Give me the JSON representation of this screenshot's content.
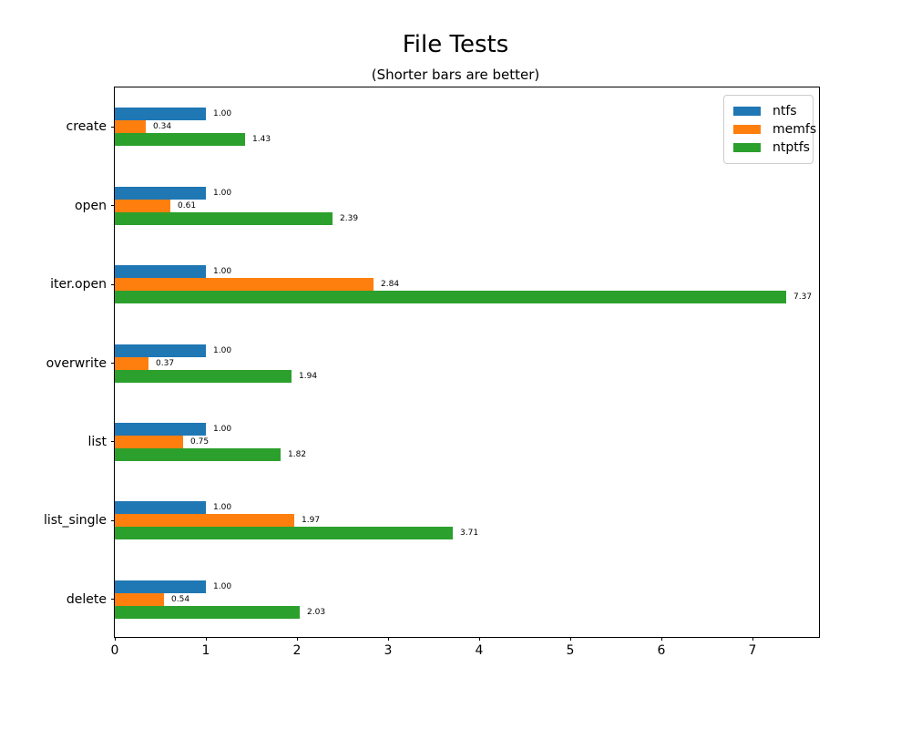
{
  "title": "File Tests",
  "subtitle": "(Shorter bars are better)",
  "chart_data": {
    "type": "bar",
    "orientation": "horizontal",
    "title": "File Tests",
    "subtitle": "(Shorter bars are better)",
    "categories": [
      "create",
      "open",
      "iter.open",
      "overwrite",
      "list",
      "list_single",
      "delete"
    ],
    "series": [
      {
        "name": "ntfs",
        "color": "#1f77b4",
        "values": [
          1.0,
          1.0,
          1.0,
          1.0,
          1.0,
          1.0,
          1.0
        ]
      },
      {
        "name": "memfs",
        "color": "#ff7f0e",
        "values": [
          0.34,
          0.61,
          2.84,
          0.37,
          0.75,
          1.97,
          0.54
        ]
      },
      {
        "name": "ntptfs",
        "color": "#2ca02c",
        "values": [
          1.43,
          2.39,
          7.37,
          1.94,
          1.82,
          3.71,
          2.03
        ]
      }
    ],
    "bar_labels": [
      [
        "1.00",
        "1.00",
        "1.00",
        "1.00",
        "1.00",
        "1.00",
        "1.00"
      ],
      [
        "0.34",
        "0.61",
        "2.84",
        "0.37",
        "0.75",
        "1.97",
        "0.54"
      ],
      [
        "1.43",
        "2.39",
        "7.37",
        "1.94",
        "1.82",
        "3.71",
        "2.03"
      ]
    ],
    "xlabel": "",
    "ylabel": "",
    "xticks": [
      "0",
      "1",
      "2",
      "3",
      "4",
      "5",
      "6",
      "7"
    ],
    "xlim": [
      0,
      7.75
    ],
    "grid": false,
    "legend_position": "upper right",
    "legend_entries": [
      "ntfs",
      "memfs",
      "ntptfs"
    ]
  }
}
